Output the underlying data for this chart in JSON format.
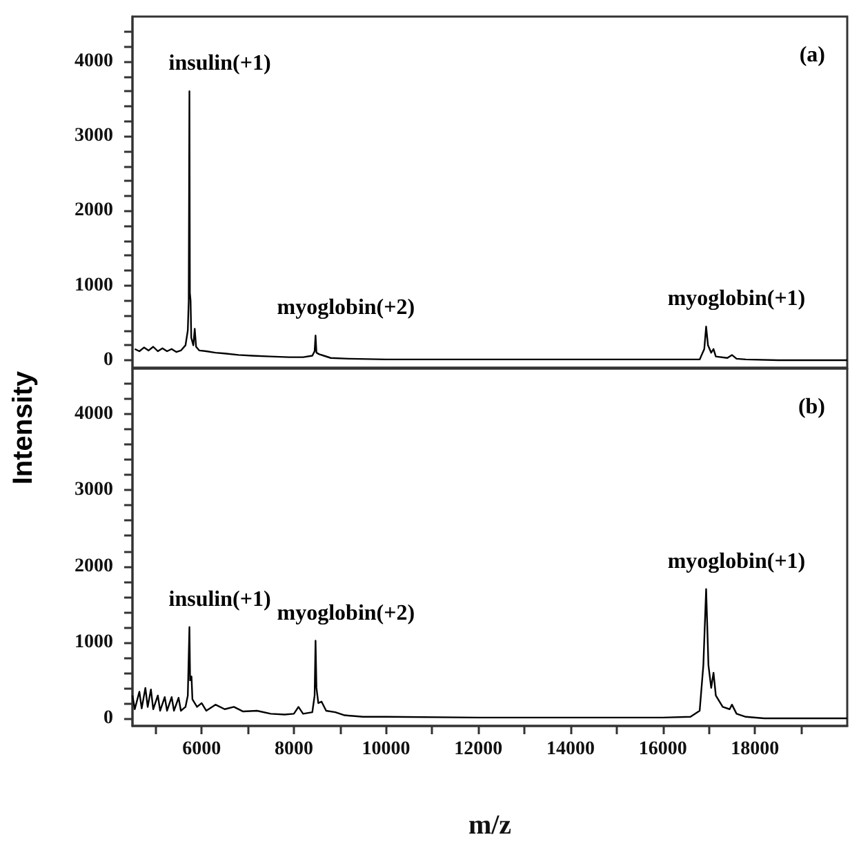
{
  "chart_data": [
    {
      "type": "line",
      "ylabel": "Intensity",
      "xlim": [
        4500,
        20000
      ],
      "ylim": [
        -100,
        4600
      ],
      "yticks": [
        0,
        {
          "value": 200,
          "label": null
        },
        {
          "value": 400,
          "label": null
        },
        {
          "value": 600,
          "label": null
        },
        {
          "value": 800,
          "label": null
        },
        1000,
        {
          "value": 1200,
          "label": null
        },
        {
          "value": 1400,
          "label": null
        },
        {
          "value": 1600,
          "label": null
        },
        {
          "value": 1800,
          "label": null
        },
        2000,
        {
          "value": 2200,
          "label": null
        },
        {
          "value": 2400,
          "label": null
        },
        {
          "value": 2600,
          "label": null
        },
        {
          "value": 2800,
          "label": null
        },
        3000,
        {
          "value": 3200,
          "label": null
        },
        {
          "value": 3400,
          "label": null
        },
        {
          "value": 3600,
          "label": null
        },
        {
          "value": 3800,
          "label": null
        },
        4000,
        {
          "value": 4200,
          "label": null
        },
        {
          "value": 4400,
          "label": null
        }
      ],
      "tick_labels": "y",
      "grid": false,
      "marker": "none",
      "line_style": "solid",
      "annotations": [
        "(a)",
        {
          "text": "insulin(+1)",
          "x": 5735,
          "y": 3600
        },
        {
          "text": "myoglobin(+2)",
          "x": 8470,
          "y": 330
        },
        {
          "text": "myoglobin(+1)",
          "x": 16940,
          "y": 450
        }
      ],
      "series": [
        {
          "color": "#000000",
          "x": [
            4550,
            4650,
            4750,
            4850,
            4950,
            5050,
            5150,
            5250,
            5350,
            5450,
            5550,
            5650,
            5700,
            5720,
            5735,
            5745,
            5760,
            5775,
            5820,
            5850,
            5880,
            5950,
            6100,
            6300,
            6500,
            6800,
            7100,
            7500,
            7900,
            8200,
            8400,
            8450,
            8470,
            8490,
            8550,
            8650,
            8800,
            9200,
            10000,
            12000,
            14000,
            16000,
            16800,
            16900,
            16940,
            16980,
            17050,
            17100,
            17150,
            17400,
            17500,
            17600,
            17800,
            18500,
            20000
          ],
          "values": [
            150,
            120,
            170,
            130,
            180,
            120,
            160,
            120,
            150,
            110,
            130,
            200,
            400,
            800,
            3600,
            900,
            800,
            300,
            200,
            420,
            180,
            130,
            120,
            100,
            90,
            70,
            60,
            50,
            40,
            40,
            60,
            120,
            330,
            100,
            80,
            60,
            30,
            20,
            10,
            10,
            10,
            10,
            10,
            150,
            450,
            200,
            100,
            150,
            50,
            30,
            70,
            20,
            10,
            0,
            0
          ]
        }
      ]
    },
    {
      "type": "line",
      "xlabel": "m/z",
      "xlim": [
        4500,
        20000
      ],
      "ylim": [
        -100,
        4600
      ],
      "xticks": [
        {
          "value": 5000,
          "label": null
        },
        6000,
        {
          "value": 7000,
          "label": null
        },
        8000,
        {
          "value": 9000,
          "label": null
        },
        10000,
        {
          "value": 11000,
          "label": null
        },
        12000,
        {
          "value": 13000,
          "label": null
        },
        14000,
        {
          "value": 15000,
          "label": null
        },
        16000,
        {
          "value": 17000,
          "label": null
        },
        18000,
        {
          "value": 19000,
          "label": null
        }
      ],
      "yticks": [
        0,
        {
          "value": 200,
          "label": null
        },
        {
          "value": 400,
          "label": null
        },
        {
          "value": 600,
          "label": null
        },
        {
          "value": 800,
          "label": null
        },
        1000,
        {
          "value": 1200,
          "label": null
        },
        {
          "value": 1400,
          "label": null
        },
        {
          "value": 1600,
          "label": null
        },
        {
          "value": 1800,
          "label": null
        },
        2000,
        {
          "value": 2200,
          "label": null
        },
        {
          "value": 2400,
          "label": null
        },
        {
          "value": 2600,
          "label": null
        },
        {
          "value": 2800,
          "label": null
        },
        3000,
        {
          "value": 3200,
          "label": null
        },
        {
          "value": 3400,
          "label": null
        },
        {
          "value": 3600,
          "label": null
        },
        {
          "value": 3800,
          "label": null
        },
        4000,
        {
          "value": 4200,
          "label": null
        },
        {
          "value": 4400,
          "label": null
        }
      ],
      "grid": false,
      "marker": "none",
      "line_style": "solid",
      "annotations": [
        "(b)",
        {
          "text": "insulin(+1)",
          "x": 5735,
          "y": 1200
        },
        {
          "text": "myoglobin(+2)",
          "x": 8470,
          "y": 1020
        },
        {
          "text": "myoglobin(+1)",
          "x": 16940,
          "y": 1700
        }
      ],
      "series": [
        {
          "color": "#000000",
          "x": [
            4500,
            4550,
            4650,
            4700,
            4780,
            4830,
            4900,
            4950,
            5050,
            5100,
            5200,
            5250,
            5350,
            5400,
            5500,
            5550,
            5650,
            5700,
            5735,
            5750,
            5780,
            5800,
            5900,
            6000,
            6100,
            6300,
            6500,
            6700,
            6900,
            7200,
            7500,
            7800,
            8000,
            8100,
            8200,
            8400,
            8450,
            8470,
            8490,
            8530,
            8600,
            8700,
            8900,
            9100,
            9500,
            10000,
            12000,
            14000,
            16000,
            16600,
            16800,
            16880,
            16940,
            16990,
            17050,
            17100,
            17150,
            17300,
            17450,
            17500,
            17600,
            17800,
            18200,
            20000
          ],
          "values": [
            300,
            120,
            350,
            130,
            400,
            150,
            380,
            120,
            300,
            100,
            280,
            100,
            280,
            100,
            270,
            100,
            150,
            300,
            1200,
            500,
            550,
            250,
            150,
            200,
            100,
            180,
            120,
            150,
            90,
            100,
            60,
            50,
            60,
            150,
            60,
            80,
            300,
            1020,
            400,
            200,
            220,
            100,
            80,
            40,
            20,
            20,
            10,
            10,
            10,
            20,
            100,
            700,
            1700,
            700,
            400,
            600,
            300,
            150,
            120,
            180,
            60,
            20,
            0,
            0
          ]
        }
      ]
    }
  ]
}
